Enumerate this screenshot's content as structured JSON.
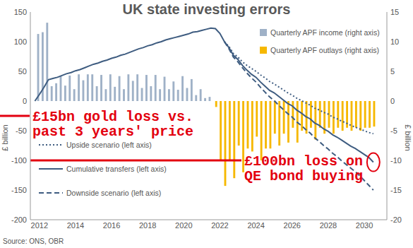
{
  "chart_data": {
    "type": "bar",
    "title": "UK state investing errors",
    "y_label": "£ billion",
    "y2_label": "£ billion",
    "source": "Source: ONS, OBR",
    "x": [
      2011.75,
      2012,
      2012.25,
      2012.5,
      2012.75,
      2013,
      2013.25,
      2013.5,
      2013.75,
      2014,
      2014.25,
      2014.5,
      2014.75,
      2015,
      2015.25,
      2015.5,
      2015.75,
      2016,
      2016.25,
      2016.5,
      2016.75,
      2017,
      2017.25,
      2017.5,
      2017.75,
      2018,
      2018.25,
      2018.5,
      2018.75,
      2019,
      2019.25,
      2019.5,
      2019.75,
      2020,
      2020.25,
      2020.5,
      2020.75,
      2021,
      2021.25,
      2021.5,
      2021.75,
      2022,
      2022.25,
      2022.5,
      2022.75,
      2023,
      2023.25,
      2023.5,
      2023.75,
      2024,
      2024.25,
      2024.5,
      2024.75,
      2025,
      2025.25,
      2025.5,
      2025.75,
      2026,
      2026.25,
      2026.5,
      2026.75,
      2027,
      2027.25,
      2027.5,
      2027.75,
      2028,
      2028.25,
      2028.5,
      2028.75,
      2029,
      2029.25,
      2029.5,
      2029.75,
      2030,
      2030.25,
      2030.5
    ],
    "xlim": [
      2011.5,
      2031.25
    ],
    "xticks": [
      2012,
      2014,
      2016,
      2018,
      2020,
      2022,
      2024,
      2026,
      2028,
      2030
    ],
    "ylim": [
      -200,
      150
    ],
    "yticks": [
      -200,
      -150,
      -100,
      -50,
      0,
      50,
      100,
      150
    ],
    "y2lim": [
      -20,
      15
    ],
    "y2ticks": [
      -20,
      -15,
      -10,
      -5,
      0,
      5,
      10,
      15
    ],
    "grid": false,
    "legend": "upper right",
    "series": [
      {
        "name": "Quarterly APF income (right axis)",
        "type": "bar",
        "axis": "y2",
        "color": "#9fb1c7",
        "values": [
          null,
          11.3,
          11.6,
          13.2,
          2.5,
          3.0,
          4.2,
          2.6,
          4.3,
          2.0,
          4.5,
          3.5,
          4.5,
          4.5,
          2.5,
          4.4,
          2.0,
          4.5,
          2.4,
          4.2,
          2.0,
          4.5,
          3.4,
          4.5,
          2.2,
          4.4,
          2.5,
          4.4,
          2.0,
          4.1,
          2.0,
          3.3,
          1.9,
          4.2,
          2.2,
          3.7,
          1.0,
          2.0,
          0.5,
          0.7,
          null,
          null,
          null,
          null,
          null,
          null,
          null,
          null,
          null,
          null,
          null,
          null,
          null,
          null,
          null,
          null,
          null,
          null,
          null,
          null,
          null,
          null,
          null,
          null,
          null,
          null,
          null,
          null,
          null,
          null,
          null,
          null,
          null,
          null,
          null,
          null
        ]
      },
      {
        "name": "Quarterly APF outlays (right axis)",
        "type": "bar",
        "axis": "y2",
        "color": "#f6b800",
        "values": [
          null,
          null,
          null,
          null,
          null,
          null,
          null,
          null,
          null,
          null,
          null,
          null,
          null,
          null,
          null,
          null,
          null,
          null,
          null,
          null,
          null,
          null,
          null,
          null,
          null,
          null,
          null,
          null,
          null,
          null,
          null,
          null,
          null,
          null,
          null,
          null,
          null,
          null,
          null,
          null,
          -1.0,
          -10,
          -14.3,
          -10,
          -13,
          -7.5,
          -12,
          -8,
          -8.5,
          -6,
          -10,
          -8,
          -8,
          -5.5,
          -7.5,
          -5.5,
          -7,
          -4.5,
          -7,
          -5,
          -5.5,
          -4.5,
          -6.5,
          -4.5,
          -5.5,
          -4.5,
          -5.5,
          -4.5,
          -5,
          -4.5,
          -5,
          -4.5,
          -5,
          -4.5,
          -4.5,
          -4.3
        ]
      },
      {
        "name": "Upside scenario (left axis)",
        "type": "line",
        "color": "#3e5c80",
        "line_style": "dotted",
        "values": [
          null,
          null,
          null,
          null,
          null,
          null,
          null,
          null,
          null,
          null,
          null,
          null,
          null,
          null,
          null,
          null,
          null,
          null,
          null,
          null,
          null,
          null,
          null,
          null,
          null,
          null,
          null,
          null,
          null,
          null,
          null,
          null,
          null,
          null,
          null,
          null,
          null,
          null,
          null,
          null,
          null,
          null,
          100,
          92,
          80,
          74,
          66,
          60,
          55,
          50,
          44,
          39,
          33,
          29,
          24,
          19,
          14,
          10,
          5,
          1,
          -3,
          -7,
          -12,
          -15,
          -19,
          -22,
          -27,
          -30,
          -34,
          -37,
          -41,
          -44,
          -47,
          -50,
          -53,
          -55
        ]
      },
      {
        "name": "Cumulative transfers (left axis)",
        "type": "line",
        "color": "#3e5c80",
        "line_style": "solid",
        "values": [
          0,
          11,
          23,
          36,
          38,
          40,
          43,
          46,
          48,
          51,
          53,
          56,
          59,
          62,
          64,
          67,
          69,
          72,
          74,
          77,
          79,
          82,
          85,
          88,
          90,
          93,
          95,
          98,
          100,
          103,
          105,
          107,
          109,
          111,
          113,
          116,
          117,
          119,
          121,
          123,
          122,
          114,
          100,
          90,
          77,
          70,
          60,
          52,
          45,
          40,
          32,
          25,
          18,
          14,
          8,
          2,
          -4,
          -8,
          -15,
          -20,
          -26,
          -30,
          -37,
          -41,
          -47,
          -51,
          -57,
          -61,
          -66,
          -71,
          -76,
          -80,
          -85,
          -90,
          -95,
          -103
        ]
      },
      {
        "name": "Downside scenario (left axis)",
        "type": "line",
        "color": "#3e5c80",
        "line_style": "dashed",
        "values": [
          null,
          null,
          null,
          null,
          null,
          null,
          null,
          null,
          null,
          null,
          null,
          null,
          null,
          null,
          null,
          null,
          null,
          null,
          null,
          null,
          null,
          null,
          null,
          null,
          null,
          null,
          null,
          null,
          null,
          null,
          null,
          null,
          null,
          null,
          null,
          null,
          null,
          null,
          null,
          null,
          null,
          null,
          100,
          88,
          74,
          66,
          56,
          47,
          39,
          32,
          23,
          15,
          7,
          1,
          -7,
          -14,
          -21,
          -27,
          -35,
          -41,
          -48,
          -54,
          -62,
          -68,
          -75,
          -81,
          -88,
          -94,
          -101,
          -107,
          -113,
          -119,
          -126,
          -134,
          -142,
          -150
        ]
      }
    ],
    "annotations": [
      {
        "lines": [
          "£15bn gold loss vs.",
          "past 3 years' price"
        ],
        "y": -25
      },
      {
        "lines": [
          "£100bn loss on",
          "QE bond buying"
        ],
        "y": -100
      }
    ]
  }
}
